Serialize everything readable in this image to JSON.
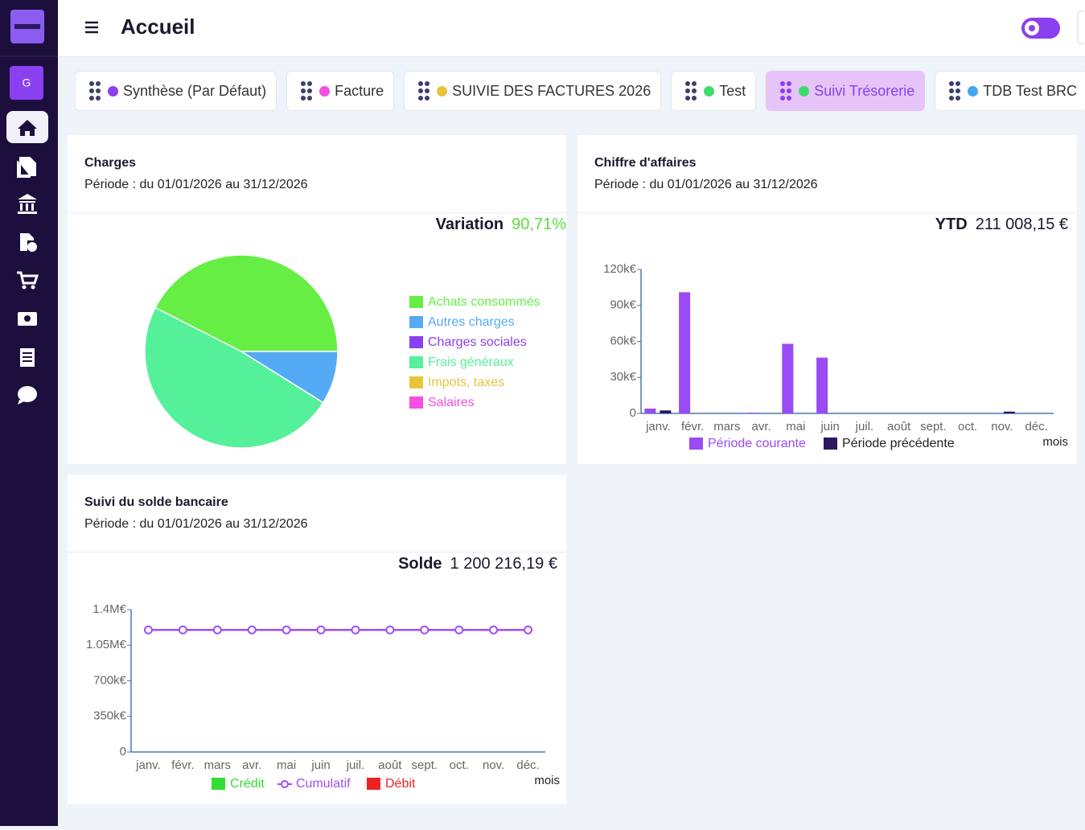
{
  "sidebar": {
    "avatar": "G"
  },
  "header": {
    "title": "Accueil"
  },
  "tabs": [
    {
      "label": "Synthèse (Par Défaut)",
      "color": "#8a3ff0"
    },
    {
      "label": "Facture",
      "color": "#f54ee0"
    },
    {
      "label": "SUIVIE DES FACTURES 2026",
      "color": "#e8c43a"
    },
    {
      "label": "Test",
      "color": "#3ddc6a"
    },
    {
      "label": "Suivi Trésorerie",
      "color": "#3ddc6a",
      "active": true
    },
    {
      "label": "TDB Test BRC",
      "color": "#44a8f0"
    }
  ],
  "chart_data": [
    {
      "type": "pie",
      "title": "Charges",
      "subtitle": "Période : du 01/01/2026 au 31/12/2026",
      "kpi_label": "Variation",
      "kpi_value": "90,71%",
      "categories": [
        "Achats consommés",
        "Autres charges",
        "Charges sociales",
        "Frais généraux",
        "Impots, taxes",
        "Salaires"
      ],
      "values": [
        42.5,
        8.9,
        0,
        48.6,
        0,
        0
      ],
      "colors": [
        "#66ee44",
        "#55aaf5",
        "#8a3ff0",
        "#55f09a",
        "#e8c43a",
        "#f54ee0"
      ]
    },
    {
      "type": "bar",
      "title": "Chiffre d'affaires",
      "subtitle": "Période : du 01/01/2026 au 31/12/2026",
      "kpi_label": "YTD",
      "kpi_value": "211 008,15 €",
      "categories": [
        "janv.",
        "févr.",
        "mars",
        "avr.",
        "mai",
        "juin",
        "juil.",
        "août",
        "sept.",
        "oct.",
        "nov.",
        "déc."
      ],
      "series": [
        {
          "name": "Période courante",
          "color": "#9b4bf5",
          "values": [
            4000,
            101000,
            0,
            500,
            58000,
            46500,
            0,
            0,
            0,
            0,
            0,
            0
          ]
        },
        {
          "name": "Période précédente",
          "color": "#2a1860",
          "values": [
            2500,
            0,
            0,
            0,
            0,
            0,
            0,
            0,
            0,
            0,
            1500,
            0
          ]
        }
      ],
      "ylim": [
        0,
        120000
      ],
      "yticks": [
        0,
        {
          "value": 30000,
          "label": "30k€"
        },
        {
          "value": 60000,
          "label": "60k€"
        },
        {
          "value": 90000,
          "label": "90k€"
        },
        {
          "value": 120000,
          "label": "120k€"
        }
      ],
      "xlabel": "mois"
    },
    {
      "type": "line",
      "title": "Suivi du solde bancaire",
      "subtitle": "Période : du 01/01/2026 au 31/12/2026",
      "kpi_label": "Solde",
      "kpi_value": "1 200 216,19 €",
      "categories": [
        "janv.",
        "févr.",
        "mars",
        "avr.",
        "mai",
        "juin",
        "juil.",
        "août",
        "sept.",
        "oct.",
        "nov.",
        "déc."
      ],
      "series": [
        {
          "name": "Crédit",
          "color": "#33dd33",
          "kind": "bar",
          "values": [
            0,
            0,
            0,
            0,
            0,
            0,
            0,
            0,
            0,
            0,
            0,
            0
          ]
        },
        {
          "name": "Cumulatif",
          "color": "#a34df5",
          "kind": "line",
          "values": [
            1200216,
            1200216,
            1200216,
            1200216,
            1200216,
            1200216,
            1200216,
            1200216,
            1200216,
            1200216,
            1200216,
            1200216
          ]
        },
        {
          "name": "Débit",
          "color": "#ee2222",
          "kind": "bar",
          "values": [
            0,
            0,
            0,
            0,
            0,
            0,
            0,
            0,
            0,
            0,
            0,
            0
          ]
        }
      ],
      "ylim": [
        0,
        1400000
      ],
      "yticks": [
        0,
        {
          "value": 350000,
          "label": "350k€"
        },
        {
          "value": 700000,
          "label": "700k€"
        },
        {
          "value": 1050000,
          "label": "1.05M€"
        },
        {
          "value": 1400000,
          "label": "1.4M€"
        }
      ],
      "xlabel": "mois"
    }
  ]
}
